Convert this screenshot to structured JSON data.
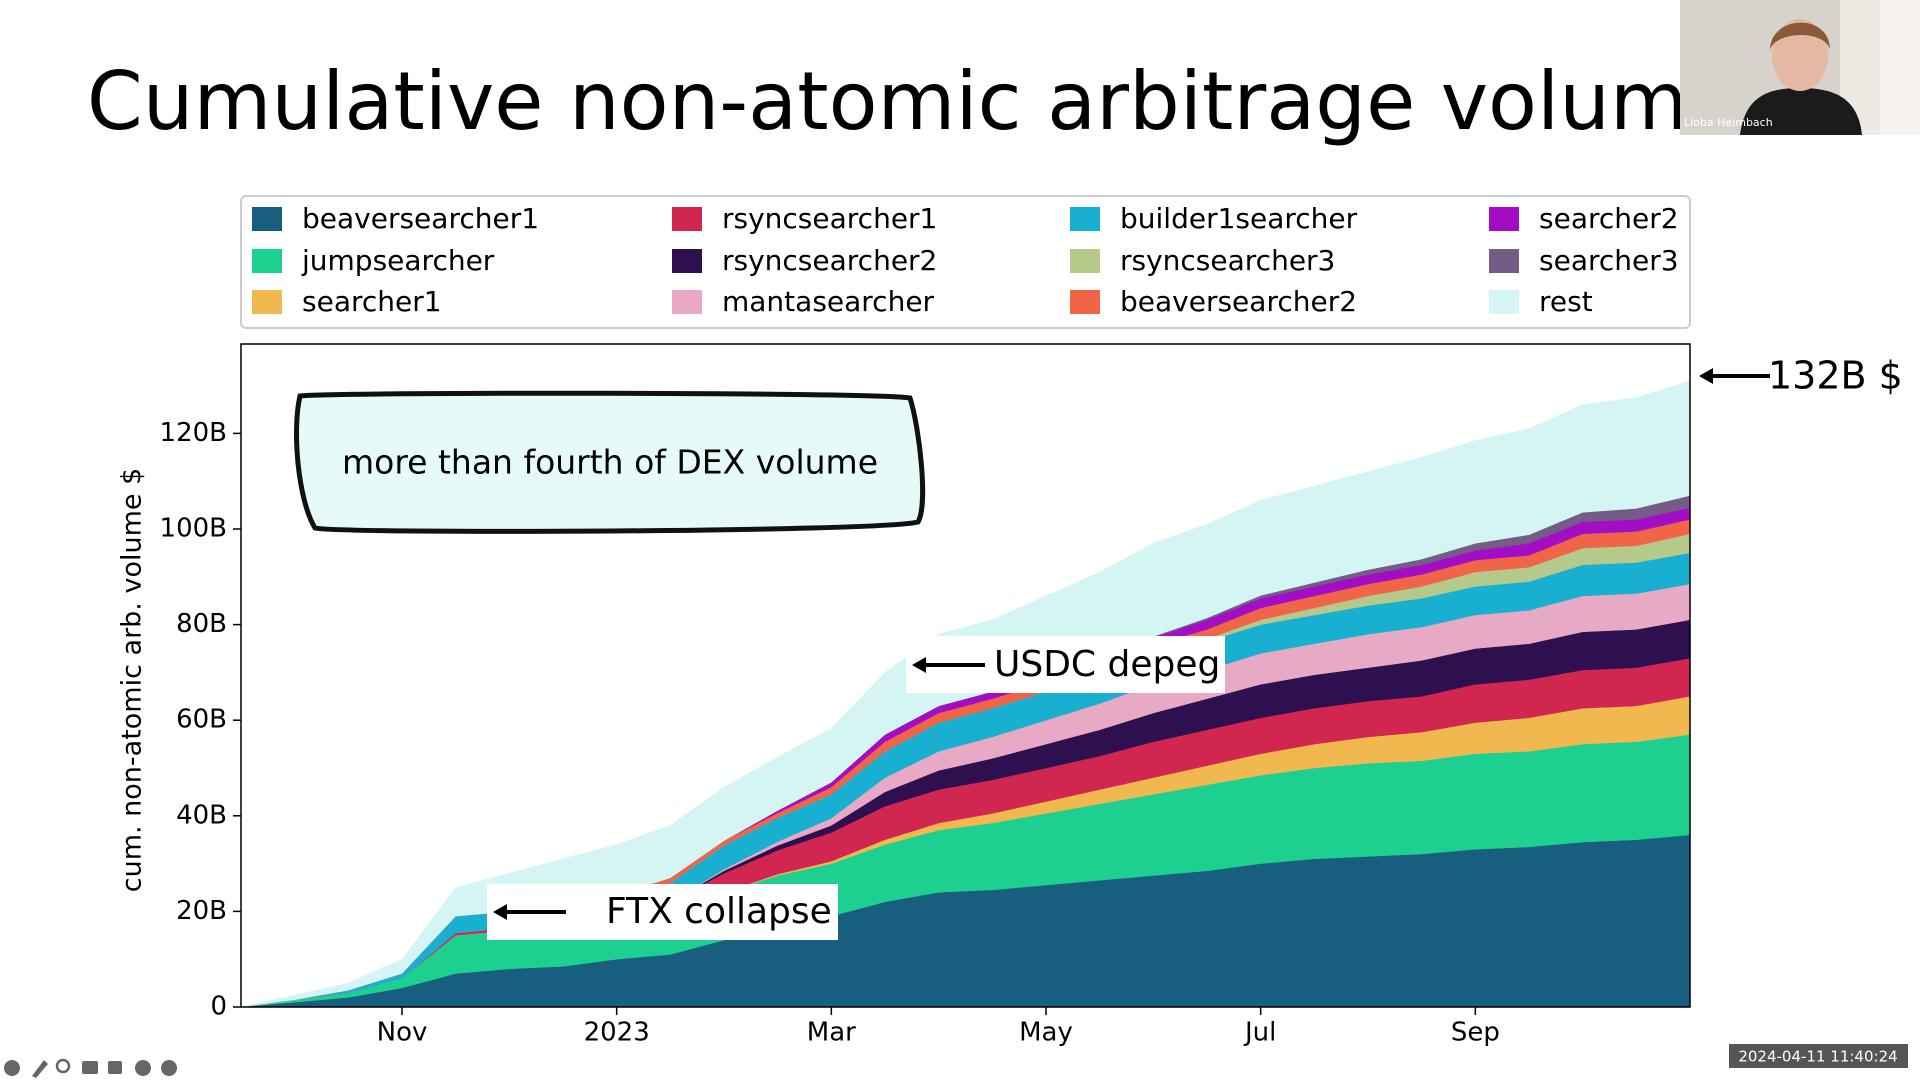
{
  "chart_data": {
    "type": "stacked_area",
    "title": "Cumulative non-atomic arbitrage volume",
    "y_label": "cum. non-atomic arb. volume $",
    "categories": [
      null,
      null,
      null,
      "Nov",
      null,
      null,
      null,
      "2023",
      null,
      null,
      null,
      "Mar",
      null,
      null,
      null,
      "May",
      null,
      null,
      null,
      "Jul",
      null,
      null,
      null,
      "Sep",
      null,
      null,
      null,
      null
    ],
    "ylim": [
      0,
      138.7
    ],
    "yticks": [
      0,
      {
        "value": 20,
        "label": "20B"
      },
      {
        "value": 40,
        "label": "40B"
      },
      {
        "value": 60,
        "label": "60B"
      },
      {
        "value": 80,
        "label": "80B"
      },
      {
        "value": 100,
        "label": "100B"
      },
      {
        "value": 120,
        "label": "120B"
      }
    ],
    "legend_ncol": 4,
    "series": [
      {
        "name": "beaversearcher1",
        "color": "#175e7f",
        "values": [
          0,
          1,
          2,
          4,
          7,
          8,
          8.5,
          10,
          11,
          14,
          17,
          19,
          22,
          24,
          24.5,
          25.5,
          26.5,
          27.5,
          28.5,
          30,
          31,
          31.5,
          32,
          33,
          33.5,
          34.5,
          35,
          36
        ]
      },
      {
        "name": "jumpsearcher",
        "color": "#1ed08f",
        "values": [
          0,
          0.5,
          1,
          2,
          8,
          8,
          8,
          8.5,
          9,
          10,
          10.5,
          11,
          12,
          13,
          14,
          15,
          16,
          17,
          18,
          18.5,
          19,
          19.5,
          19.5,
          20,
          20,
          20.5,
          20.5,
          21
        ]
      },
      {
        "name": "searcher1",
        "color": "#f0b84e",
        "values": [
          0,
          0,
          0,
          0,
          0,
          0,
          0,
          0,
          0,
          0,
          0.3,
          0.5,
          1,
          1.5,
          2,
          2.5,
          3,
          3.5,
          4,
          4.5,
          5,
          5.5,
          6,
          6.5,
          7,
          7.5,
          7.5,
          8
        ]
      },
      {
        "name": "rsyncsearcher1",
        "color": "#d1264f",
        "values": [
          0,
          0,
          0,
          0,
          0.5,
          0.5,
          1,
          1,
          2,
          4,
          5,
          6,
          7,
          7,
          7,
          7,
          7,
          7.5,
          7.5,
          7.5,
          7.5,
          7.5,
          7.5,
          8,
          8,
          8,
          8,
          8
        ]
      },
      {
        "name": "rsyncsearcher2",
        "color": "#2e0f4f",
        "values": [
          0,
          0,
          0,
          0,
          0,
          0,
          0,
          0,
          0,
          0.5,
          1,
          1.5,
          3,
          4,
          4.5,
          5,
          5.5,
          6,
          6.5,
          7,
          7,
          7,
          7.5,
          7.5,
          7.5,
          8,
          8,
          8
        ]
      },
      {
        "name": "mantasearcher",
        "color": "#e8a9c4",
        "values": [
          0,
          0,
          0,
          0,
          0,
          0,
          0,
          0,
          0,
          0.3,
          0.8,
          1.5,
          3,
          4,
          4.5,
          5,
          5.5,
          6,
          6,
          6.5,
          6.5,
          7,
          7,
          7,
          7,
          7.5,
          7.5,
          7.5
        ]
      },
      {
        "name": "builder1searcher",
        "color": "#18afd0",
        "values": [
          0,
          0,
          0.5,
          1,
          3.5,
          3.5,
          3.5,
          3.5,
          4,
          5,
          5,
          5,
          5.5,
          6,
          6,
          6,
          6,
          6,
          6,
          6,
          6,
          6,
          6,
          6,
          6,
          6.5,
          6.5,
          6.5
        ]
      },
      {
        "name": "rsyncsearcher3",
        "color": "#b5c98b",
        "values": [
          0,
          0,
          0,
          0,
          0,
          0,
          0,
          0,
          0,
          0,
          0,
          0,
          0,
          0,
          0,
          0,
          0,
          0.3,
          0.5,
          1,
          1.5,
          2,
          2.5,
          3,
          3,
          3.5,
          3.5,
          4
        ]
      },
      {
        "name": "beaversearcher2",
        "color": "#f06448",
        "values": [
          0,
          0,
          0,
          0,
          0,
          0,
          0.5,
          0.5,
          1,
          1,
          1,
          1.5,
          2,
          2,
          2,
          2,
          2,
          2,
          2,
          2.5,
          2.5,
          2.5,
          2.5,
          2.5,
          2.5,
          3,
          3,
          3
        ]
      },
      {
        "name": "searcher2",
        "color": "#a30dc5",
        "values": [
          0,
          0,
          0,
          0,
          0,
          0,
          0,
          0,
          0,
          0,
          0.5,
          1,
          1.5,
          1.5,
          1.5,
          1.5,
          1.5,
          1.5,
          2,
          2,
          2,
          2,
          2,
          2,
          2.5,
          2.5,
          2.5,
          2.5
        ]
      },
      {
        "name": "searcher3",
        "color": "#745c87",
        "values": [
          0,
          0,
          0,
          0,
          0,
          0,
          0,
          0,
          0,
          0,
          0,
          0,
          0,
          0,
          0,
          0,
          0,
          0.2,
          0.4,
          0.6,
          0.8,
          1,
          1.2,
          1.5,
          1.8,
          2,
          2.3,
          2.5
        ]
      },
      {
        "name": "rest",
        "color": "#d5f5f5",
        "values": [
          0,
          1,
          1.5,
          3,
          6,
          8,
          9.5,
          10.5,
          11,
          11.2,
          11.2,
          11.3,
          13,
          15,
          15,
          16.5,
          18,
          19.5,
          19.6,
          19.9,
          20.2,
          20.5,
          21.3,
          21.5,
          22.2,
          22.5,
          23.2,
          24
        ]
      }
    ],
    "annotations": [
      "more than fourth of DEX volume",
      "USDC depeg",
      "FTX collapse",
      "132B $"
    ]
  },
  "presenter": {
    "name": "Lioba Heimbach"
  },
  "timestamp": "2024-04-11 11:40:24"
}
